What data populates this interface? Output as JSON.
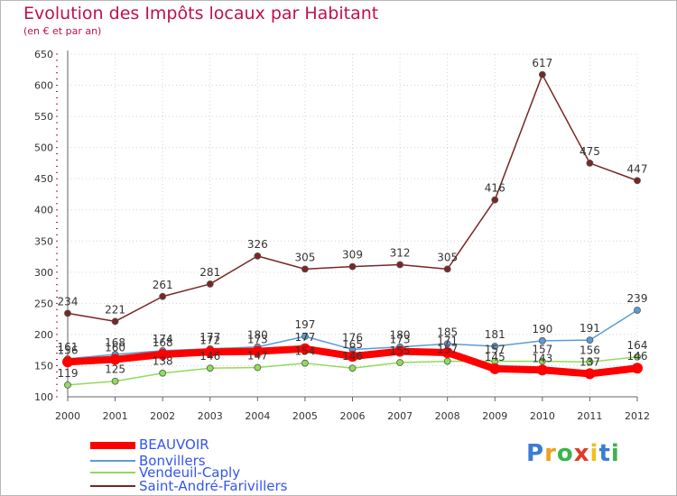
{
  "chart_data": {
    "type": "line",
    "title": "Evolution des Impôts locaux par Habitant",
    "subtitle": "(en € et par an)",
    "xlabel": "",
    "ylabel": "",
    "ylim": [
      100,
      650
    ],
    "yticks": [
      100,
      150,
      200,
      250,
      300,
      350,
      400,
      450,
      500,
      550,
      600,
      650
    ],
    "x": [
      "2000",
      "2001",
      "2002",
      "2003",
      "2004",
      "2005",
      "2006",
      "2007",
      "2008",
      "2009",
      "2010",
      "2011",
      "2012"
    ],
    "series": [
      {
        "name": "BEAUVOIR",
        "color": "#ff0000",
        "values": [
          156,
          160,
          168,
          172,
          173,
          177,
          165,
          173,
          171,
          145,
          143,
          137,
          146
        ]
      },
      {
        "name": "Bonvillers",
        "color": "#5b9bd5",
        "values": [
          161,
          168,
          174,
          177,
          180,
          197,
          176,
          180,
          185,
          181,
          190,
          191,
          239
        ]
      },
      {
        "name": "Vendeuil-Caply",
        "color": "#8fdc5a",
        "values": [
          119,
          125,
          138,
          146,
          147,
          154,
          146,
          155,
          157,
          157,
          157,
          156,
          164
        ]
      },
      {
        "name": "Saint-André-Farivillers",
        "color": "#7a2626",
        "values": [
          234,
          221,
          261,
          281,
          326,
          305,
          309,
          312,
          305,
          416,
          617,
          475,
          447
        ]
      }
    ]
  },
  "logo": {
    "letters": [
      "P",
      "r",
      "o",
      "x",
      "i",
      "t",
      "i"
    ],
    "colors": [
      "#3a7bd5",
      "#f0a020",
      "#3ab54a",
      "#e03a2a",
      "#f0c020",
      "#3a7bd5",
      "#3ab54a"
    ]
  }
}
